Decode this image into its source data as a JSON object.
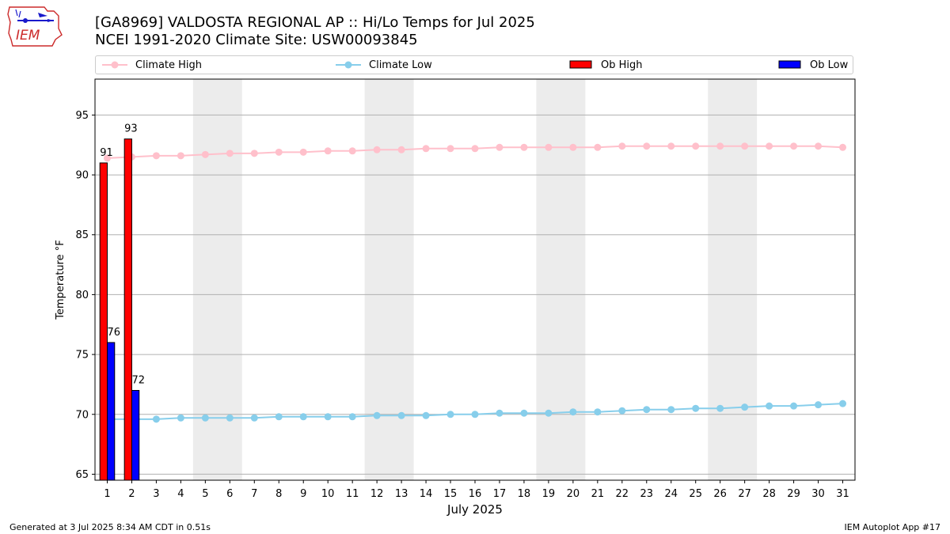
{
  "header": {
    "logo_text": "IEM",
    "title_line1": "[GA8969] VALDOSTA REGIONAL AP :: Hi/Lo Temps for Jul 2025",
    "title_line2": "NCEI 1991-2020 Climate Site: USW00093845"
  },
  "legend": {
    "climate_high": "Climate High",
    "climate_low": "Climate Low",
    "ob_high": "Ob High",
    "ob_low": "Ob Low"
  },
  "colors": {
    "climate_high": "#ffc0cb",
    "climate_low": "#87ceeb",
    "ob_high": "#ff0000",
    "ob_low": "#0000ff",
    "weekend_band": "#ececec",
    "grid": "#b0b0b0"
  },
  "footer": {
    "left": "Generated at 3 Jul 2025 8:34 AM CDT in 0.51s",
    "right": "IEM Autoplot App #17"
  },
  "chart_data": {
    "type": "bar",
    "xlabel": "July 2025",
    "ylabel": "Temperature °F",
    "xlim": [
      0.5,
      31.5
    ],
    "ylim": [
      64.5,
      98
    ],
    "yticks": [
      65,
      70,
      75,
      80,
      85,
      90,
      95
    ],
    "grid": "horizontal",
    "legend_position": "top",
    "days": [
      1,
      2,
      3,
      4,
      5,
      6,
      7,
      8,
      9,
      10,
      11,
      12,
      13,
      14,
      15,
      16,
      17,
      18,
      19,
      20,
      21,
      22,
      23,
      24,
      25,
      26,
      27,
      28,
      29,
      30,
      31
    ],
    "weekend_days": [
      [
        5,
        6
      ],
      [
        12,
        13
      ],
      [
        19,
        20
      ],
      [
        26,
        27
      ]
    ],
    "series": [
      {
        "name": "Climate High",
        "kind": "line",
        "values": [
          91.4,
          91.5,
          91.6,
          91.6,
          91.7,
          91.8,
          91.8,
          91.9,
          91.9,
          92.0,
          92.0,
          92.1,
          92.1,
          92.2,
          92.2,
          92.2,
          92.3,
          92.3,
          92.3,
          92.3,
          92.3,
          92.4,
          92.4,
          92.4,
          92.4,
          92.4,
          92.4,
          92.4,
          92.4,
          92.4,
          92.3
        ]
      },
      {
        "name": "Climate Low",
        "kind": "line",
        "values": [
          69.6,
          69.6,
          69.6,
          69.7,
          69.7,
          69.7,
          69.7,
          69.8,
          69.8,
          69.8,
          69.8,
          69.9,
          69.9,
          69.9,
          70.0,
          70.0,
          70.1,
          70.1,
          70.1,
          70.2,
          70.2,
          70.3,
          70.4,
          70.4,
          70.5,
          70.5,
          70.6,
          70.7,
          70.7,
          70.8,
          70.9
        ]
      },
      {
        "name": "Ob High",
        "kind": "bar",
        "days": [
          1,
          2
        ],
        "values": [
          91,
          93
        ]
      },
      {
        "name": "Ob Low",
        "kind": "bar",
        "days": [
          1,
          2
        ],
        "values": [
          76,
          72
        ]
      }
    ]
  }
}
